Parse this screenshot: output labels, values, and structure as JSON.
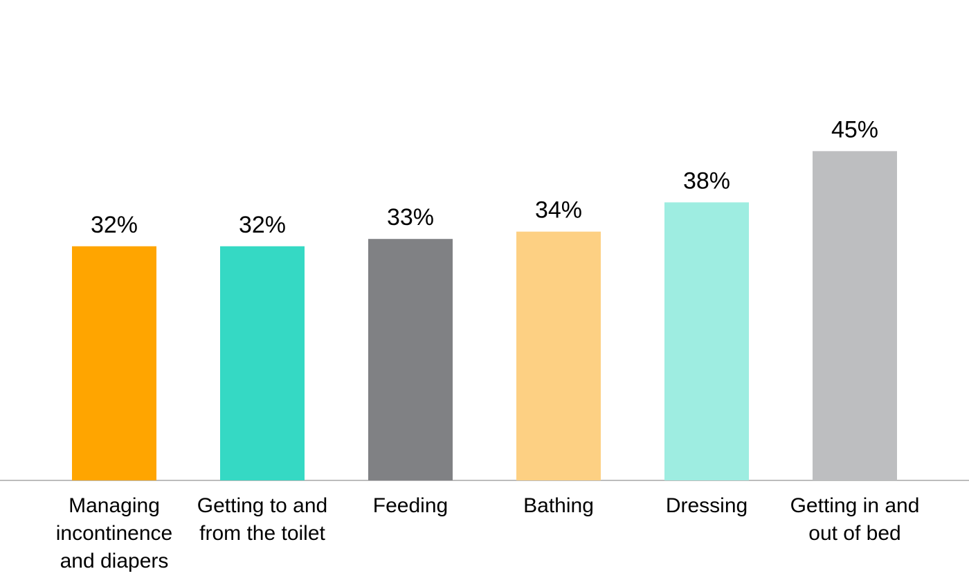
{
  "chart_data": {
    "type": "bar",
    "title": "",
    "xlabel": "",
    "ylabel": "",
    "ylim": [
      0,
      50
    ],
    "grid": false,
    "legend": "none",
    "value_suffix": "%",
    "categories": [
      [
        "Managing",
        "incontinence",
        "and diapers"
      ],
      [
        "Getting to and",
        "from the toilet"
      ],
      [
        "Feeding"
      ],
      [
        "Bathing"
      ],
      [
        "Dressing"
      ],
      [
        "Getting in and",
        "out of bed"
      ]
    ],
    "values": [
      32,
      32,
      33,
      34,
      38,
      45
    ],
    "colors": [
      "#FFA500",
      "#35D9C4",
      "#808184",
      "#FDD083",
      "#9EEDE1",
      "#BDBEC0"
    ],
    "axis_color": "#A6A6A6"
  }
}
